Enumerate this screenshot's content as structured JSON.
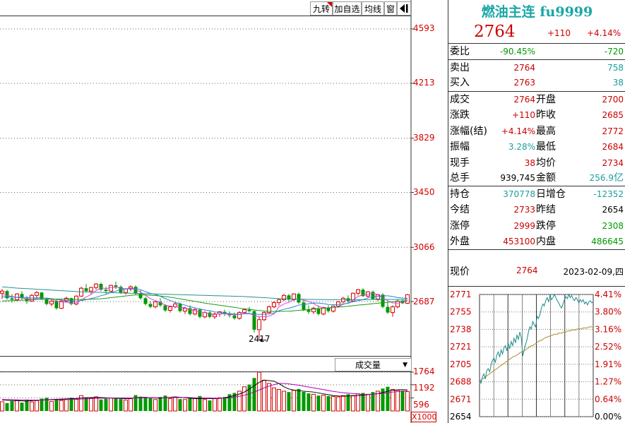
{
  "toolbar": {
    "buttons": [
      "九转",
      "加自选",
      "均线",
      "窗"
    ],
    "exit_icon": "exit-arrow-icon"
  },
  "kline": {
    "price_axis_labels": [
      "4593",
      "4213",
      "3829",
      "3450",
      "3066",
      "2687"
    ],
    "low_annotation": "2417",
    "volume_indicator": "成交量",
    "volume_axis_labels": [
      "1764",
      "1192",
      "596"
    ],
    "volume_unit": "X1000",
    "up_color": "#d40000",
    "down_color": "#009900"
  },
  "chart_data": {
    "type": "candlestick",
    "ylim": [
      2417,
      4593
    ],
    "candles": [
      [
        2745,
        2775,
        2705,
        2760
      ],
      [
        2760,
        2770,
        2700,
        2710
      ],
      [
        2710,
        2740,
        2680,
        2700
      ],
      [
        2700,
        2745,
        2690,
        2740
      ],
      [
        2740,
        2760,
        2700,
        2710
      ],
      [
        2710,
        2725,
        2670,
        2690
      ],
      [
        2690,
        2740,
        2685,
        2730
      ],
      [
        2730,
        2760,
        2715,
        2750
      ],
      [
        2750,
        2755,
        2700,
        2705
      ],
      [
        2705,
        2715,
        2660,
        2670
      ],
      [
        2670,
        2700,
        2655,
        2690
      ],
      [
        2690,
        2705,
        2630,
        2640
      ],
      [
        2640,
        2700,
        2635,
        2690
      ],
      [
        2690,
        2720,
        2680,
        2710
      ],
      [
        2710,
        2715,
        2660,
        2670
      ],
      [
        2670,
        2730,
        2660,
        2725
      ],
      [
        2725,
        2790,
        2720,
        2780
      ],
      [
        2780,
        2810,
        2750,
        2760
      ],
      [
        2760,
        2790,
        2740,
        2785
      ],
      [
        2785,
        2815,
        2770,
        2810
      ],
      [
        2810,
        2820,
        2760,
        2770
      ],
      [
        2770,
        2790,
        2740,
        2760
      ],
      [
        2760,
        2805,
        2750,
        2800
      ],
      [
        2800,
        2825,
        2775,
        2790
      ],
      [
        2790,
        2800,
        2740,
        2750
      ],
      [
        2750,
        2780,
        2735,
        2775
      ],
      [
        2775,
        2800,
        2760,
        2790
      ],
      [
        2790,
        2800,
        2735,
        2745
      ],
      [
        2745,
        2770,
        2700,
        2710
      ],
      [
        2710,
        2720,
        2660,
        2670
      ],
      [
        2670,
        2690,
        2640,
        2650
      ],
      [
        2650,
        2690,
        2640,
        2685
      ],
      [
        2685,
        2710,
        2650,
        2660
      ],
      [
        2660,
        2670,
        2615,
        2625
      ],
      [
        2625,
        2660,
        2610,
        2650
      ],
      [
        2650,
        2680,
        2640,
        2670
      ],
      [
        2670,
        2680,
        2610,
        2620
      ],
      [
        2620,
        2650,
        2600,
        2640
      ],
      [
        2640,
        2660,
        2590,
        2600
      ],
      [
        2600,
        2640,
        2590,
        2630
      ],
      [
        2630,
        2640,
        2570,
        2580
      ],
      [
        2580,
        2620,
        2570,
        2610
      ],
      [
        2610,
        2620,
        2570,
        2580
      ],
      [
        2580,
        2610,
        2565,
        2600
      ],
      [
        2600,
        2620,
        2580,
        2615
      ],
      [
        2615,
        2630,
        2585,
        2600
      ],
      [
        2600,
        2620,
        2575,
        2590
      ],
      [
        2590,
        2610,
        2560,
        2570
      ],
      [
        2570,
        2620,
        2560,
        2610
      ],
      [
        2610,
        2640,
        2600,
        2630
      ],
      [
        2630,
        2650,
        2610,
        2620
      ],
      [
        2620,
        2630,
        2470,
        2490
      ],
      [
        2490,
        2580,
        2417,
        2560
      ],
      [
        2560,
        2620,
        2550,
        2610
      ],
      [
        2610,
        2660,
        2600,
        2650
      ],
      [
        2650,
        2690,
        2640,
        2680
      ],
      [
        2680,
        2710,
        2660,
        2700
      ],
      [
        2700,
        2740,
        2690,
        2730
      ],
      [
        2730,
        2740,
        2690,
        2700
      ],
      [
        2700,
        2745,
        2690,
        2740
      ],
      [
        2740,
        2750,
        2670,
        2680
      ],
      [
        2680,
        2700,
        2620,
        2630
      ],
      [
        2630,
        2660,
        2600,
        2615
      ],
      [
        2615,
        2650,
        2600,
        2640
      ],
      [
        2640,
        2660,
        2590,
        2600
      ],
      [
        2600,
        2650,
        2590,
        2645
      ],
      [
        2645,
        2660,
        2610,
        2620
      ],
      [
        2620,
        2660,
        2610,
        2655
      ],
      [
        2655,
        2690,
        2645,
        2685
      ],
      [
        2685,
        2720,
        2675,
        2710
      ],
      [
        2710,
        2730,
        2680,
        2690
      ],
      [
        2690,
        2750,
        2685,
        2745
      ],
      [
        2745,
        2775,
        2730,
        2770
      ],
      [
        2770,
        2780,
        2720,
        2725
      ],
      [
        2725,
        2760,
        2715,
        2755
      ],
      [
        2755,
        2765,
        2700,
        2705
      ],
      [
        2705,
        2740,
        2690,
        2735
      ],
      [
        2735,
        2745,
        2640,
        2650
      ],
      [
        2650,
        2680,
        2600,
        2610
      ],
      [
        2610,
        2660,
        2580,
        2650
      ],
      [
        2650,
        2700,
        2640,
        2690
      ],
      [
        2690,
        2705,
        2670,
        2675
      ],
      [
        2675,
        2740,
        2670,
        2735
      ]
    ],
    "ma5": [
      2735,
      2730,
      2722,
      2715,
      2712,
      2706,
      2702,
      2708,
      2713,
      2710,
      2703,
      2691,
      2683,
      2682,
      2674,
      2679,
      2697,
      2719,
      2736,
      2763,
      2783,
      2777,
      2785,
      2786,
      2782,
      2775,
      2781,
      2770,
      2754,
      2730,
      2707,
      2693,
      2682,
      2662,
      2655,
      2652,
      2643,
      2645,
      2630,
      2622,
      2614,
      2610,
      2600,
      2596,
      2601,
      2601,
      2597,
      2595,
      2597,
      2604,
      2604,
      2588,
      2582,
      2581,
      2585,
      2600,
      2650,
      2670,
      2681,
      2702,
      2707,
      2697,
      2688,
      2673,
      2653,
      2642,
      2644,
      2645,
      2648,
      2668,
      2677,
      2700,
      2722,
      2735,
      2737,
      2745,
      2735,
      2712,
      2693,
      2677,
      2676,
      2682,
      2690
    ],
    "ma10": [
      2720,
      2720,
      2719,
      2717,
      2716,
      2715,
      2712,
      2712,
      2712,
      2711,
      2707,
      2703,
      2697,
      2694,
      2692,
      2691,
      2693,
      2700,
      2708,
      2717,
      2728,
      2736,
      2751,
      2759,
      2772,
      2775,
      2779,
      2778,
      2770,
      2756,
      2744,
      2737,
      2724,
      2708,
      2694,
      2681,
      2672,
      2662,
      2651,
      2642,
      2635,
      2628,
      2623,
      2614,
      2611,
      2606,
      2603,
      2599,
      2599,
      2601,
      2602,
      2600,
      2597,
      2598,
      2601,
      2606,
      2623,
      2633,
      2640,
      2650,
      2662,
      2666,
      2671,
      2677,
      2676,
      2673,
      2666,
      2665,
      2666,
      2670,
      2675,
      2685,
      2693,
      2700,
      2712,
      2720,
      2724,
      2727,
      2727,
      2722,
      2715,
      2712,
      2710
    ],
    "ma20": [
      2690,
      2692,
      2693,
      2695,
      2697,
      2698,
      2700,
      2701,
      2702,
      2703,
      2704,
      2704,
      2704,
      2704,
      2703,
      2703,
      2702,
      2702,
      2703,
      2705,
      2707,
      2710,
      2714,
      2718,
      2722,
      2726,
      2730,
      2733,
      2734,
      2733,
      2731,
      2729,
      2726,
      2722,
      2717,
      2712,
      2706,
      2700,
      2694,
      2688,
      2682,
      2676,
      2671,
      2666,
      2661,
      2656,
      2651,
      2646,
      2641,
      2637,
      2633,
      2628,
      2624,
      2621,
      2619,
      2618,
      2618,
      2619,
      2620,
      2622,
      2625,
      2628,
      2631,
      2634,
      2637,
      2640,
      2642,
      2645,
      2648,
      2651,
      2654,
      2658,
      2662,
      2665,
      2668,
      2672,
      2675,
      2679,
      2682,
      2685,
      2688,
      2691,
      2694
    ],
    "ma60": [
      2790,
      2787,
      2784,
      2781,
      2779,
      2777,
      2775,
      2773,
      2771,
      2769,
      2767,
      2765,
      2763,
      2761,
      2759,
      2757,
      2755,
      2754,
      2753,
      2752,
      2751,
      2750,
      2749,
      2748,
      2747,
      2746,
      2745,
      2744,
      2743,
      2742,
      2741,
      2740,
      2739,
      2738,
      2737,
      2736,
      2735,
      2734,
      2733,
      2732,
      2731,
      2730,
      2729,
      2728,
      2727,
      2726,
      2725,
      2724,
      2723,
      2722,
      2720,
      2718,
      2716,
      2714,
      2712,
      2710,
      2708,
      2707,
      2706,
      2705,
      2704,
      2703,
      2702,
      2702,
      2701,
      2701,
      2700,
      2700,
      2700,
      2700,
      2700,
      2700,
      2700,
      2700,
      2700,
      2701,
      2701,
      2701,
      2702,
      2702,
      2702,
      2703,
      2703
    ],
    "volume": [
      420,
      360,
      450,
      500,
      380,
      520,
      410,
      470,
      560,
      600,
      430,
      550,
      480,
      520,
      600,
      540,
      700,
      620,
      580,
      640,
      520,
      560,
      590,
      610,
      540,
      500,
      560,
      720,
      650,
      600,
      580,
      520,
      640,
      700,
      560,
      610,
      540,
      520,
      600,
      560,
      680,
      520,
      480,
      560,
      600,
      640,
      760,
      820,
      900,
      1100,
      1200,
      1500,
      1764,
      1400,
      1250,
      1050,
      980,
      900,
      860,
      940,
      1000,
      870,
      800,
      760,
      700,
      720,
      680,
      660,
      640,
      700,
      760,
      700,
      780,
      820,
      760,
      860,
      900,
      1020,
      1100,
      980,
      940,
      920,
      880
    ],
    "vol_ma5": [
      500,
      490,
      480,
      470,
      460,
      450,
      470,
      490,
      500,
      510,
      520,
      530,
      540,
      550,
      560,
      570,
      590,
      600,
      610,
      620,
      610,
      600,
      590,
      580,
      570,
      560,
      570,
      600,
      610,
      620,
      600,
      590,
      580,
      600,
      620,
      640,
      620,
      600,
      580,
      560,
      560,
      570,
      560,
      560,
      570,
      590,
      650,
      700,
      770,
      860,
      1000,
      1150,
      1300,
      1400,
      1380,
      1350,
      1250,
      1100,
      1000,
      950,
      920,
      900,
      880,
      860,
      820,
      780,
      740,
      700,
      680,
      670,
      680,
      690,
      700,
      720,
      740,
      760,
      790,
      840,
      900,
      940,
      960,
      970,
      960
    ],
    "vol_ma10": [
      520,
      515,
      510,
      505,
      500,
      498,
      496,
      495,
      495,
      500,
      505,
      510,
      515,
      520,
      525,
      530,
      540,
      550,
      560,
      570,
      580,
      585,
      590,
      592,
      592,
      590,
      588,
      590,
      595,
      600,
      605,
      602,
      598,
      600,
      606,
      612,
      615,
      612,
      608,
      600,
      595,
      590,
      585,
      580,
      578,
      580,
      600,
      630,
      670,
      720,
      780,
      860,
      950,
      1050,
      1130,
      1200,
      1250,
      1250,
      1230,
      1200,
      1170,
      1130,
      1090,
      1050,
      1010,
      970,
      930,
      890,
      860,
      830,
      810,
      790,
      770,
      750,
      750,
      760,
      780,
      800,
      830,
      860,
      880,
      900,
      910
    ]
  },
  "quote": {
    "title": "燃油主连 fu9999",
    "price": "2764",
    "change": "+110",
    "change_pct": "+4.14%",
    "wei_bi": {
      "label": "委比",
      "pct": "-90.45%",
      "diff": "-720"
    },
    "sell": {
      "label": "卖出",
      "price": "2764",
      "qty": "758"
    },
    "buy": {
      "label": "买入",
      "price": "2763",
      "qty": "38"
    },
    "stats1": [
      {
        "k1": "成交",
        "v1": "2764",
        "k2": "开盘",
        "v2": "2700",
        "c1": "red",
        "c2": "red"
      },
      {
        "k1": "涨跌",
        "v1": "+110",
        "k2": "昨收",
        "v2": "2685",
        "c1": "red",
        "c2": "red"
      },
      {
        "k1": "涨幅(结)",
        "v1": "+4.14%",
        "k2": "最高",
        "v2": "2772",
        "c1": "red",
        "c2": "red"
      },
      {
        "k1": "振幅",
        "v1": "3.28%",
        "k2": "最低",
        "v2": "2684",
        "c1": "teal",
        "c2": "red"
      },
      {
        "k1": "现手",
        "v1": "38",
        "k2": "均价",
        "v2": "2734",
        "c1": "red",
        "c2": "red"
      }
    ],
    "total": {
      "k1": "总手",
      "v1": "939,745",
      "k2": "金额",
      "v2a": "256.9",
      "v2b": "亿"
    },
    "stats2": [
      {
        "k1": "持仓",
        "v1": "370778",
        "k2": "日增仓",
        "v2": "-12352",
        "c1": "teal",
        "c2": "teal"
      },
      {
        "k1": "今结",
        "v1": "2733",
        "k2": "昨结",
        "v2": "2654",
        "c1": "red",
        "c2": "black"
      },
      {
        "k1": "涨停",
        "v1": "2999",
        "k2": "跌停",
        "v2": "2308",
        "c1": "red",
        "c2": "green"
      },
      {
        "k1": "外盘",
        "v1": "453100",
        "k2": "内盘",
        "v2": "486645",
        "c1": "red",
        "c2": "green"
      }
    ],
    "now": {
      "label": "现价",
      "price": "2764",
      "date": "2023-02-09,四"
    }
  },
  "intraday": {
    "left_labels": [
      "2771",
      "2755",
      "2738",
      "2721",
      "2705",
      "2688",
      "2671",
      "2654"
    ],
    "right_labels": [
      "4.41%",
      "3.80%",
      "3.16%",
      "2.52%",
      "1.91%",
      "1.27%",
      "0.64%",
      "0.00%"
    ],
    "price_color": "#1a8a8a",
    "avg_color": "#b08a2a",
    "ylim": [
      2654,
      2771
    ],
    "price_series": [
      2690,
      2686,
      2692,
      2695,
      2690,
      2698,
      2700,
      2697,
      2703,
      2708,
      2710,
      2706,
      2713,
      2716,
      2711,
      2718,
      2714,
      2720,
      2722,
      2717,
      2724,
      2719,
      2726,
      2722,
      2729,
      2725,
      2732,
      2728,
      2735,
      2730,
      2712,
      2718,
      2723,
      2728,
      2735,
      2740,
      2738,
      2745,
      2742,
      2740,
      2750,
      2748,
      2752,
      2758,
      2762,
      2760,
      2765,
      2768,
      2764,
      2770,
      2766,
      2768,
      2771,
      2768,
      2765,
      2763,
      2760,
      2758,
      2762,
      2766,
      2769,
      2767,
      2771,
      2768,
      2770,
      2767,
      2765,
      2768,
      2766,
      2763,
      2766,
      2764,
      2766,
      2762,
      2764,
      2761,
      2764,
      2765,
      2763,
      2764
    ],
    "avg_series": [
      2688,
      2689,
      2690,
      2691,
      2692,
      2693,
      2694,
      2695,
      2696,
      2697,
      2698,
      2699,
      2700,
      2701,
      2702,
      2703,
      2704,
      2705,
      2706,
      2707,
      2708,
      2709,
      2710,
      2711,
      2712,
      2712,
      2713,
      2714,
      2715,
      2716,
      2716,
      2717,
      2718,
      2719,
      2720,
      2721,
      2722,
      2722,
      2723,
      2724,
      2725,
      2726,
      2727,
      2727,
      2728,
      2729,
      2730,
      2730,
      2731,
      2731,
      2732,
      2732,
      2733,
      2733,
      2733,
      2734,
      2734,
      2734,
      2735,
      2735,
      2735,
      2736,
      2736,
      2736,
      2737,
      2737,
      2737,
      2737,
      2738,
      2738,
      2738,
      2738,
      2739,
      2739,
      2739,
      2739,
      2740,
      2740,
      2740,
      2740
    ]
  }
}
